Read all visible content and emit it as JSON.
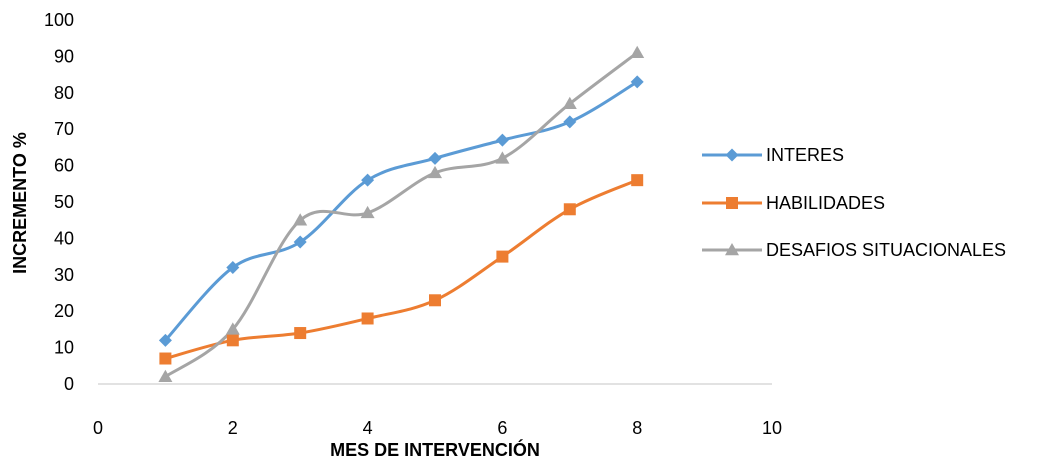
{
  "chart_data": {
    "type": "line",
    "xlabel": "MES DE INTERVENCIÓN",
    "ylabel": "INCREMENTO %",
    "xlim": [
      0,
      10
    ],
    "ylim": [
      0,
      100
    ],
    "x_ticks": [
      0,
      2,
      4,
      6,
      8,
      10
    ],
    "y_ticks": [
      0,
      10,
      20,
      30,
      40,
      50,
      60,
      70,
      80,
      90,
      100
    ],
    "grid": false,
    "legend_position": "right",
    "x": [
      1,
      2,
      3,
      4,
      5,
      6,
      7,
      8
    ],
    "series": [
      {
        "name": "INTERES",
        "color": "#5B9BD5",
        "marker": "diamond",
        "values": [
          12,
          32,
          39,
          56,
          62,
          67,
          72,
          83
        ]
      },
      {
        "name": "HABILIDADES",
        "color": "#ED7D31",
        "marker": "square",
        "values": [
          7,
          12,
          14,
          18,
          23,
          35,
          48,
          56
        ]
      },
      {
        "name": "DESAFIOS SITUACIONALES",
        "color": "#A5A5A5",
        "marker": "triangle",
        "values": [
          2,
          15,
          45,
          47,
          58,
          62,
          77,
          91
        ]
      }
    ]
  }
}
